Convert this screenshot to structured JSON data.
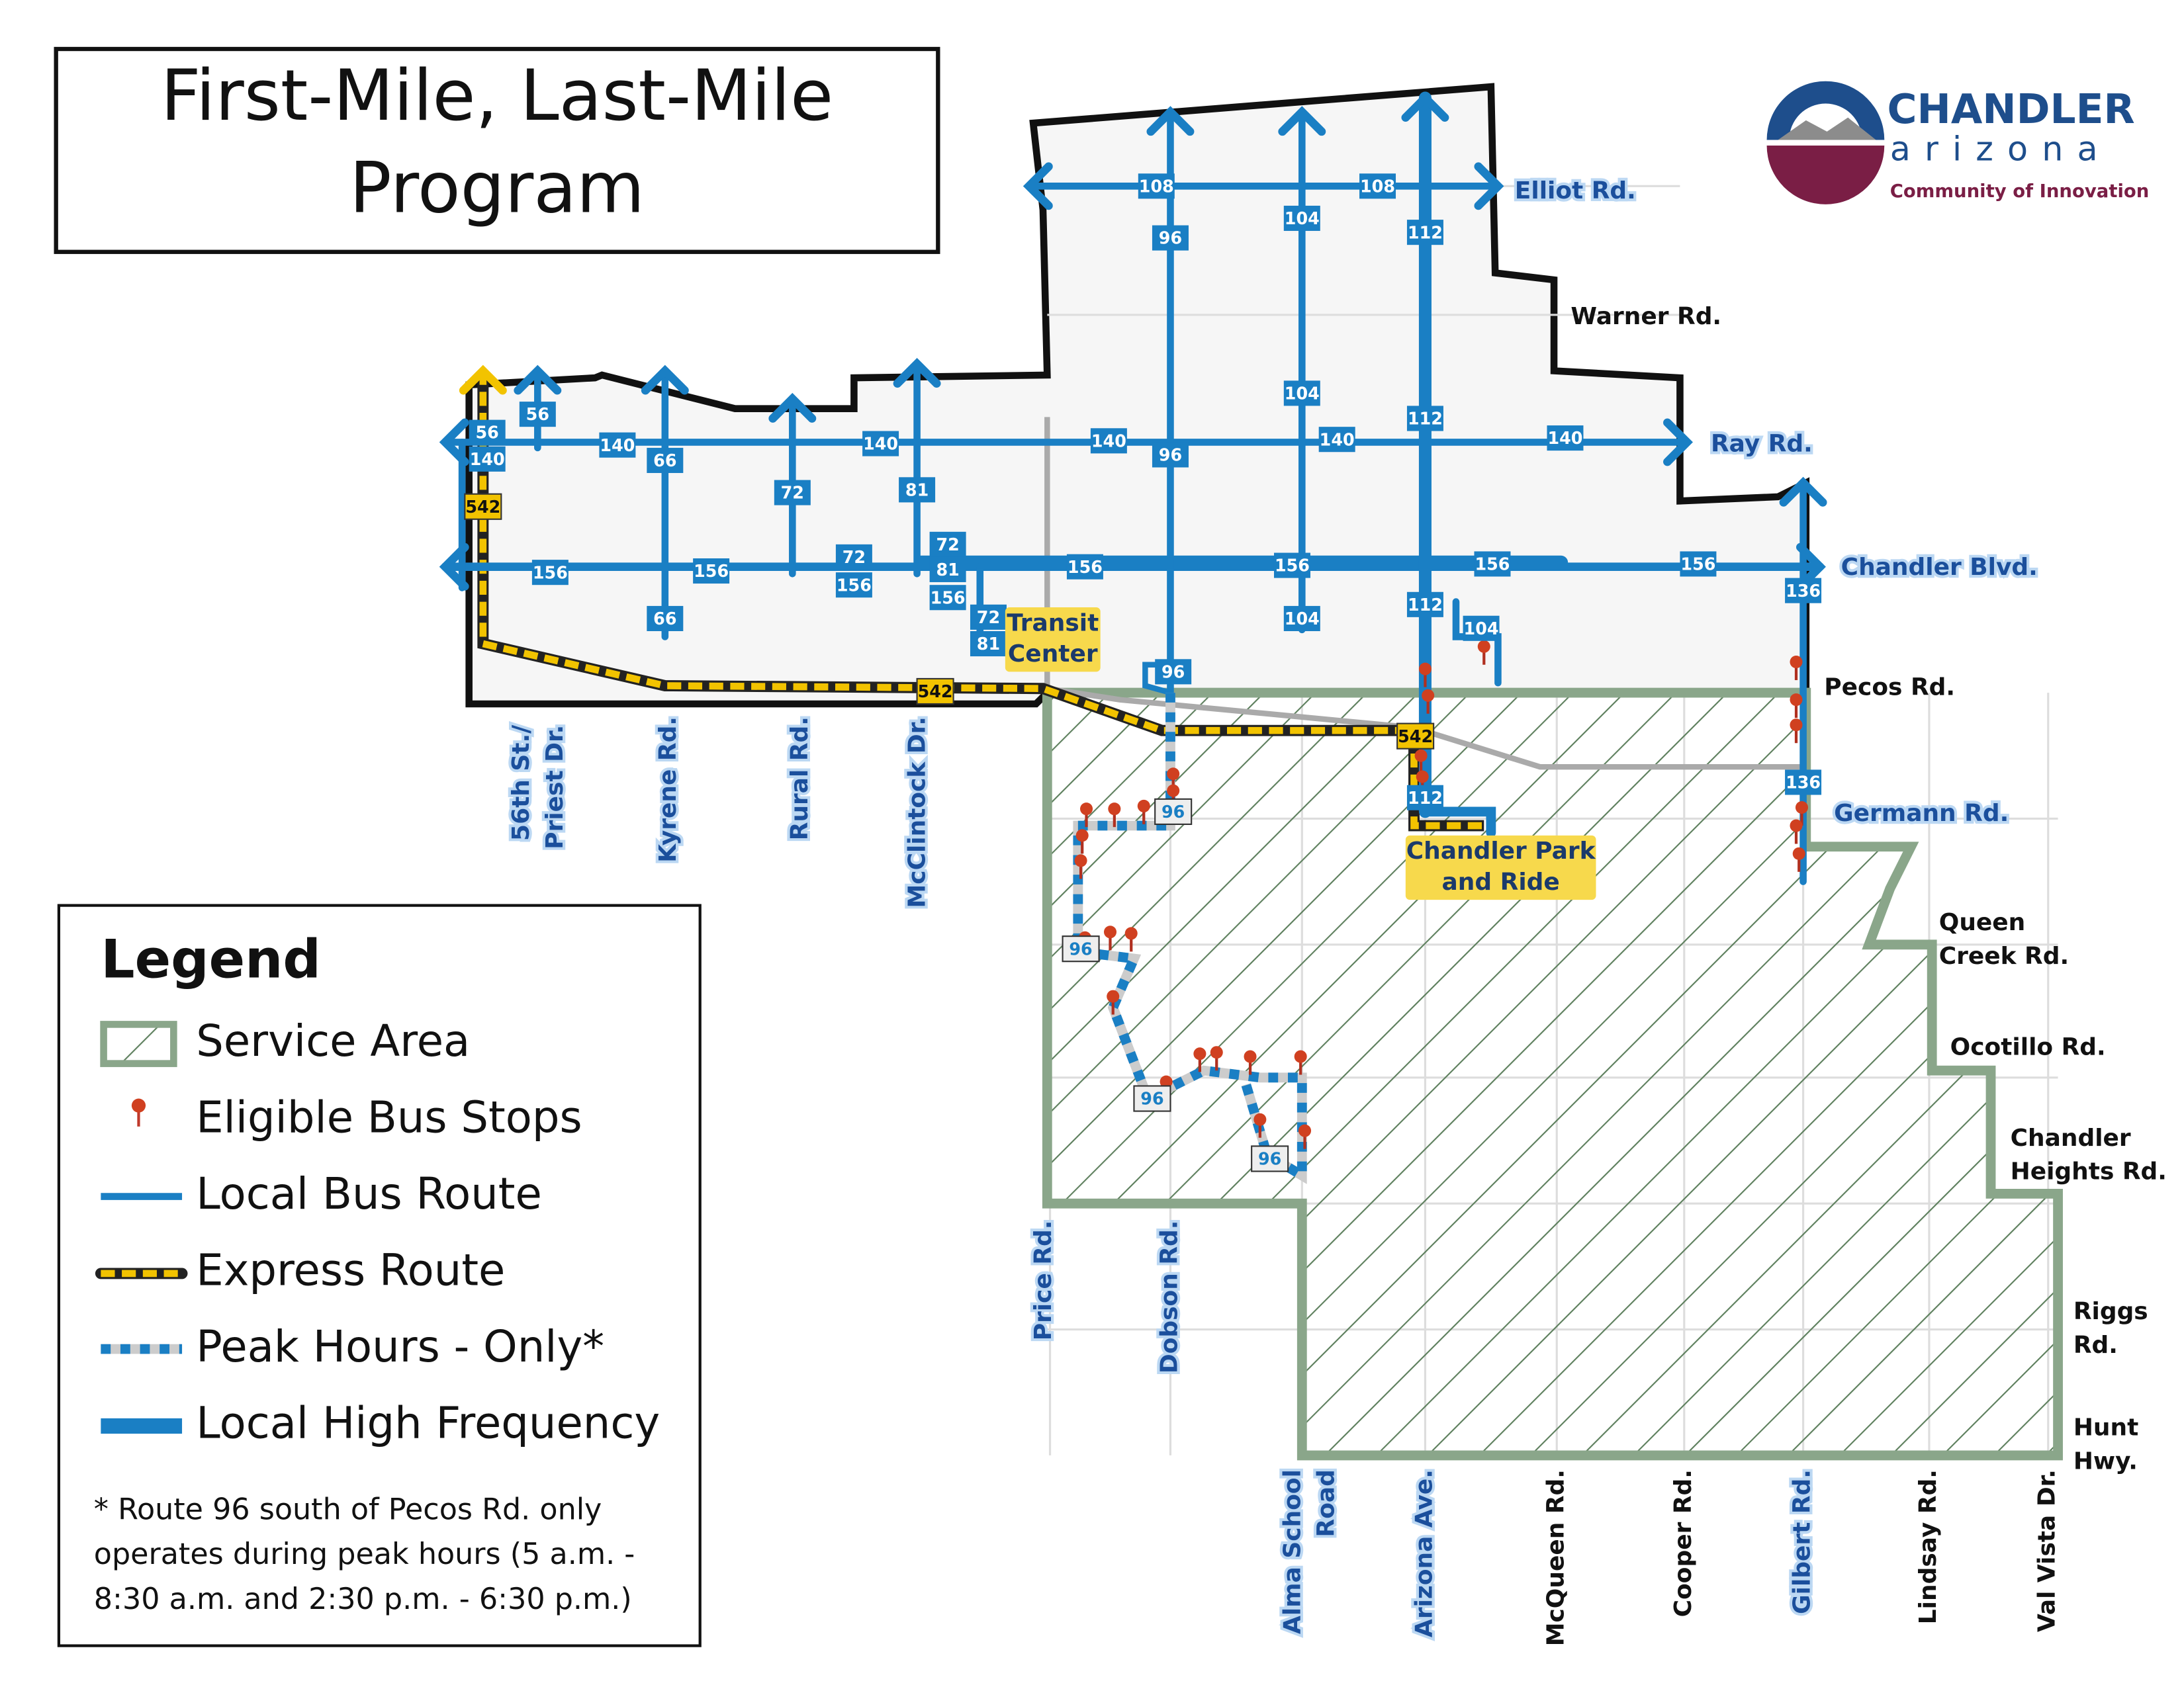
{
  "title": [
    "First-Mile, Last-Mile",
    "Program"
  ],
  "logo": {
    "name": "CHANDLER",
    "state": "arizona",
    "tagline": "Community of Innovation"
  },
  "legend": {
    "title": "Legend",
    "items": [
      "Service Area",
      "Eligible Bus Stops",
      "Local Bus Route",
      "Express Route",
      "Peak Hours - Only*",
      "Local High Frequency"
    ],
    "note": [
      "* Route 96 south of Pecos Rd. only",
      "operates during peak hours (5 a.m. -",
      "8:30 a.m. and 2:30 p.m. - 6:30 p.m.)"
    ]
  },
  "roads": [
    {
      "lines": [
        "Elliot Rd."
      ]
    },
    {
      "lines": [
        "Warner Rd."
      ]
    },
    {
      "lines": [
        "Ray Rd."
      ]
    },
    {
      "lines": [
        "Chandler Blvd."
      ]
    },
    {
      "lines": [
        "Pecos Rd."
      ]
    },
    {
      "lines": [
        "Germann Rd."
      ]
    },
    {
      "lines": [
        "Queen",
        "Creek Rd."
      ]
    },
    {
      "lines": [
        "Ocotillo Rd."
      ]
    },
    {
      "lines": [
        "Chandler",
        "Heights Rd."
      ]
    },
    {
      "lines": [
        "Riggs",
        "Rd."
      ]
    },
    {
      "lines": [
        "Hunt",
        "Hwy."
      ]
    },
    {
      "lines": [
        "56th St./",
        "Priest Dr."
      ]
    },
    {
      "lines": [
        "Kyrene Rd."
      ]
    },
    {
      "lines": [
        "Rural Rd."
      ]
    },
    {
      "lines": [
        "McClintock Dr."
      ]
    },
    {
      "lines": [
        "Price Rd."
      ]
    },
    {
      "lines": [
        "Dobson Rd."
      ]
    },
    {
      "lines": [
        "Alma School",
        "Road"
      ]
    },
    {
      "lines": [
        "Arizona Ave."
      ]
    },
    {
      "lines": [
        "McQueen Rd."
      ]
    },
    {
      "lines": [
        "Cooper Rd."
      ]
    },
    {
      "lines": [
        "Gilbert Rd."
      ]
    },
    {
      "lines": [
        "Lindsay Rd."
      ]
    },
    {
      "lines": [
        "Val Vista Dr."
      ]
    }
  ],
  "places": [
    {
      "lines": [
        "Transit",
        "Center"
      ]
    },
    {
      "lines": [
        "Chandler Park",
        "and Ride"
      ]
    }
  ],
  "badges": [
    "108",
    "108",
    "96",
    "96",
    "104",
    "104",
    "104",
    "112",
    "112",
    "112",
    "112",
    "56",
    "56",
    "140",
    "140",
    "140",
    "140",
    "140",
    "140",
    "66",
    "66",
    "72",
    "72",
    "72",
    "72",
    "81",
    "81",
    "81",
    "156",
    "156",
    "156",
    "156",
    "156",
    "156",
    "156",
    "156",
    "104",
    "136",
    "136",
    "96",
    "96",
    "96",
    "96",
    "96",
    "542",
    "542",
    "542"
  ]
}
